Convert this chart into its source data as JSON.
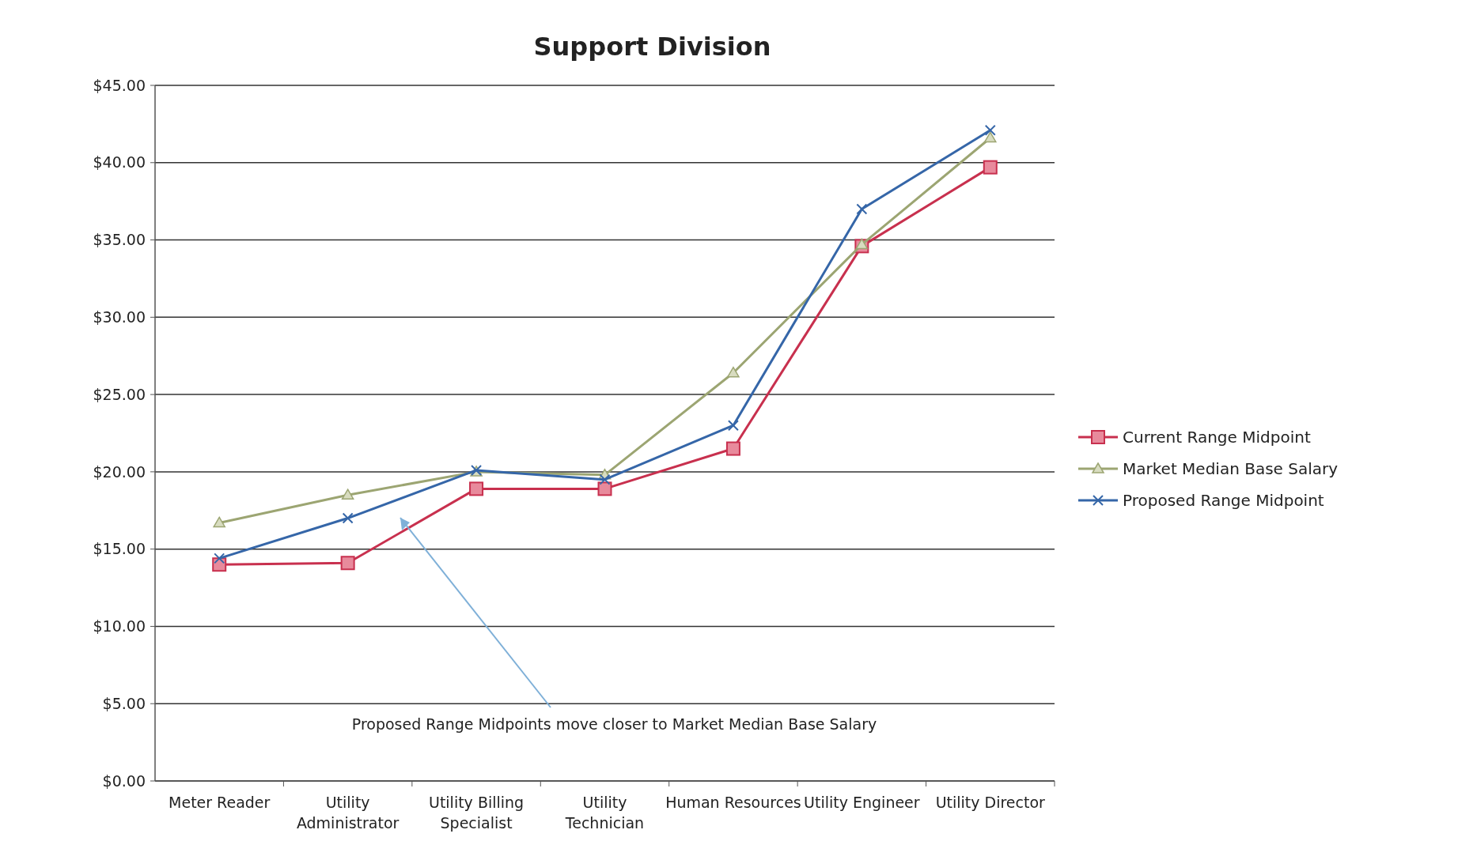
{
  "chart_data": {
    "type": "line",
    "title": "Support Division",
    "categories": [
      "Meter Reader",
      "Utility Administrator",
      "Utility Billing Specialist",
      "Utility Technician",
      "Human Resources",
      "Utility Engineer",
      "Utility Director"
    ],
    "series": [
      {
        "name": "Current Range Midpoint",
        "color": "#c8304e",
        "marker": "square",
        "values": [
          14.0,
          14.1,
          18.9,
          18.9,
          21.5,
          34.6,
          39.7
        ]
      },
      {
        "name": "Market Median Base Salary",
        "color": "#9ca572",
        "marker": "triangle",
        "values": [
          16.7,
          18.5,
          20.0,
          19.8,
          26.4,
          34.7,
          41.6
        ]
      },
      {
        "name": "Proposed Range Midpoint",
        "color": "#3566a8",
        "marker": "cross",
        "values": [
          14.4,
          17.0,
          20.1,
          19.5,
          23.0,
          37.0,
          42.1
        ]
      }
    ],
    "ylim": [
      0,
      45
    ],
    "yticks": [
      {
        "value": 0,
        "label": "$0.00"
      },
      {
        "value": 5,
        "label": "$5.00"
      },
      {
        "value": 10,
        "label": "$10.00"
      },
      {
        "value": 15,
        "label": "$15.00"
      },
      {
        "value": 20,
        "label": "$20.00"
      },
      {
        "value": 25,
        "label": "$25.00"
      },
      {
        "value": 30,
        "label": "$30.00"
      },
      {
        "value": 35,
        "label": "$35.00"
      },
      {
        "value": 40,
        "label": "$40.00"
      },
      {
        "value": 45,
        "label": "$45.00"
      }
    ],
    "grid": "y",
    "legend": "right",
    "annotations": [
      "Proposed Range Midpoints move closer to Market Median Base Salary"
    ]
  }
}
